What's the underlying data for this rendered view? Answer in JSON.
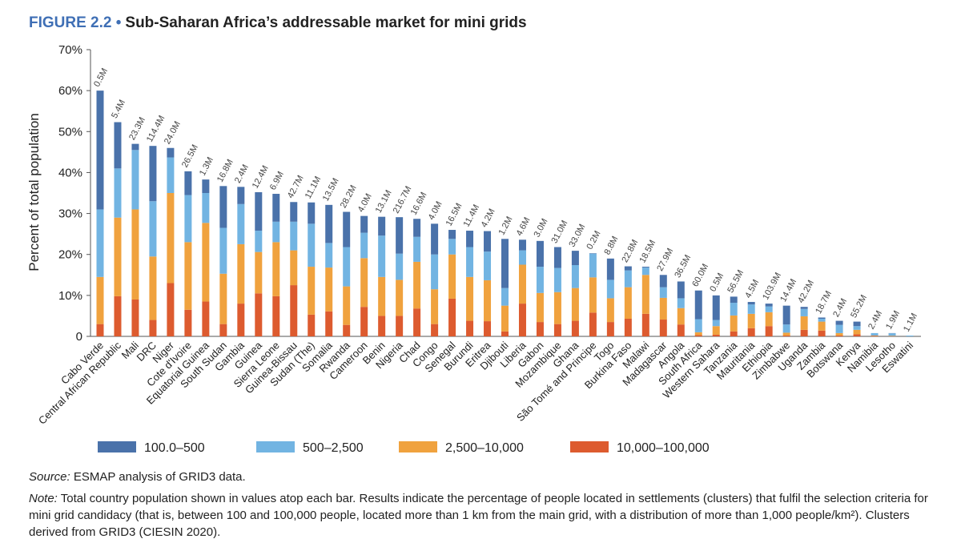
{
  "chart_data": {
    "type": "stacked_bar",
    "figure_label": "FIGURE 2.2 •",
    "title": "Sub-Saharan Africa’s addressable market for mini grids",
    "y_label": "Percent of total population",
    "categories": [
      "Cabo Verde",
      "Central African Republic",
      "Mali",
      "DRC",
      "Niger",
      "Cote d'Ivoire",
      "Equatorial Guinea",
      "South Sudan",
      "Gambia",
      "Guinea",
      "Sierra Leone",
      "Guinea-Bissau",
      "Sudan (The)",
      "Somalia",
      "Rwanda",
      "Cameroon",
      "Benin",
      "Nigeria",
      "Chad",
      "Congo",
      "Senegal",
      "Burundi",
      "Eritrea",
      "Djibouti",
      "Liberia",
      "Gabon",
      "Mozambique",
      "Ghana",
      "São Tomé and Principe",
      "Togo",
      "Burkina Faso",
      "Malawi",
      "Madagascar",
      "Angola",
      "South Africa",
      "Western Sahara",
      "Tanzania",
      "Mauritania",
      "Ethiopia",
      "Zimbabwe",
      "Uganda",
      "Zambia",
      "Botswana",
      "Kenya",
      "Namibia",
      "Lesotho",
      "Eswatini"
    ],
    "population_labels": [
      "0.5M",
      "5.4M",
      "23.3M",
      "114.4M",
      "24.0M",
      "26.5M",
      "1.3M",
      "16.8M",
      "2.4M",
      "12.4M",
      "6.9M",
      "42.7M",
      "11.1M",
      "13.5M",
      "28.2M",
      "4.0M",
      "13.1M",
      "216.7M",
      "16.6M",
      "4.0M",
      "16.5M",
      "11.4M",
      "4.2M",
      "1.2M",
      "4.6M",
      "3.0M",
      "31.0M",
      "33.0M",
      "0.2M",
      "8.8M",
      "22.8M",
      "18.5M",
      "27.9M",
      "36.5M",
      "60.0M",
      "0.5M",
      "56.5M",
      "4.5M",
      "103.9M",
      "14.4M",
      "42.2M",
      "18.7M",
      "2.4M",
      "55.2M",
      "2.4M",
      "1.9M",
      "1.1M"
    ],
    "series": [
      {
        "name": "100.0–500",
        "color": "#4a72aa",
        "values": [
          29,
          11.3,
          1.5,
          13.5,
          2.3,
          5.8,
          3.3,
          10.2,
          4.2,
          9.4,
          6.8,
          4.8,
          5.2,
          9.3,
          8.6,
          4.1,
          4.6,
          8.9,
          4.4,
          7.5,
          2.2,
          4,
          5,
          12,
          2.6,
          6.3,
          5.1,
          3.5,
          0.1,
          5.2,
          1,
          0.2,
          3,
          4.1,
          7,
          6,
          1.5,
          0.6,
          0.7,
          4.6,
          0.5,
          0.3,
          1,
          1.1,
          0,
          0.05,
          0
        ]
      },
      {
        "name": "500–2,500",
        "color": "#72b4e2",
        "values": [
          16.5,
          12,
          14.5,
          13.5,
          8.7,
          11.5,
          7.3,
          11.2,
          9.8,
          5.2,
          5,
          7,
          10.5,
          6,
          9.6,
          6.2,
          10.1,
          6.4,
          6.1,
          8.5,
          3.8,
          7.3,
          7,
          4.3,
          3.5,
          6.4,
          5.9,
          5.6,
          5.8,
          4.5,
          4.1,
          1.8,
          2.6,
          2.4,
          3.2,
          1.5,
          3.1,
          2.3,
          1.4,
          2,
          1.8,
          0.7,
          2,
          0.9,
          0.6,
          0.6,
          0.2
        ]
      },
      {
        "name": "2,500–10,000",
        "color": "#f0a23e",
        "values": [
          11.5,
          19.2,
          22,
          15.5,
          22,
          16.5,
          19.2,
          12.3,
          14.5,
          10.1,
          13.2,
          8.5,
          11.7,
          10.7,
          9.4,
          11.9,
          9.5,
          8.8,
          11.4,
          8.5,
          10.8,
          10.7,
          10,
          6.3,
          9.5,
          7.1,
          7.8,
          8,
          8.6,
          5.8,
          7.7,
          9.5,
          5.3,
          4,
          0.7,
          2.1,
          3.9,
          3.5,
          3.4,
          0.7,
          3.3,
          2.2,
          0.6,
          1.1,
          0.1,
          0.1,
          0
        ]
      },
      {
        "name": "10,000–100,000",
        "color": "#dd5b2f",
        "values": [
          3,
          9.8,
          9,
          4,
          13,
          6.5,
          8.5,
          3,
          8,
          10.5,
          9.8,
          12.5,
          5.3,
          6.1,
          2.8,
          7.2,
          5,
          5,
          6.8,
          3,
          9.2,
          3.8,
          3.7,
          1.2,
          8,
          3.5,
          3,
          3.8,
          5.8,
          3.5,
          4.3,
          5.5,
          4.1,
          2.9,
          0.3,
          0.4,
          1.2,
          2,
          2.5,
          0.2,
          1.6,
          1.4,
          0.2,
          0.5,
          0.1,
          0.05,
          0
        ]
      }
    ],
    "ylim": [
      0,
      70
    ],
    "yticks": [
      0,
      {
        "value": 10,
        "label": "10%"
      },
      {
        "value": 20,
        "label": "20%"
      },
      {
        "value": 30,
        "label": "30%"
      },
      {
        "value": 40,
        "label": "40%"
      },
      {
        "value": 50,
        "label": "50%"
      },
      {
        "value": 60,
        "label": "60%"
      },
      {
        "value": 70,
        "label": "70%"
      }
    ],
    "grid": false,
    "legend": "bottom",
    "source_label": "Source:",
    "source_text": " ESMAP analysis of GRID3 data.",
    "note_label": "Note:",
    "note_text": " Total country population shown in values atop each bar. Results indicate the percentage of people located in settlements (clusters) that fulfil the selection criteria for mini grid candidacy (that is, between 100 and 100,000 people, located more than 1 km from the main grid, with a distribution of more than 1,000 people/km²). Clusters derived from GRID3 (CIESIN 2020)."
  }
}
